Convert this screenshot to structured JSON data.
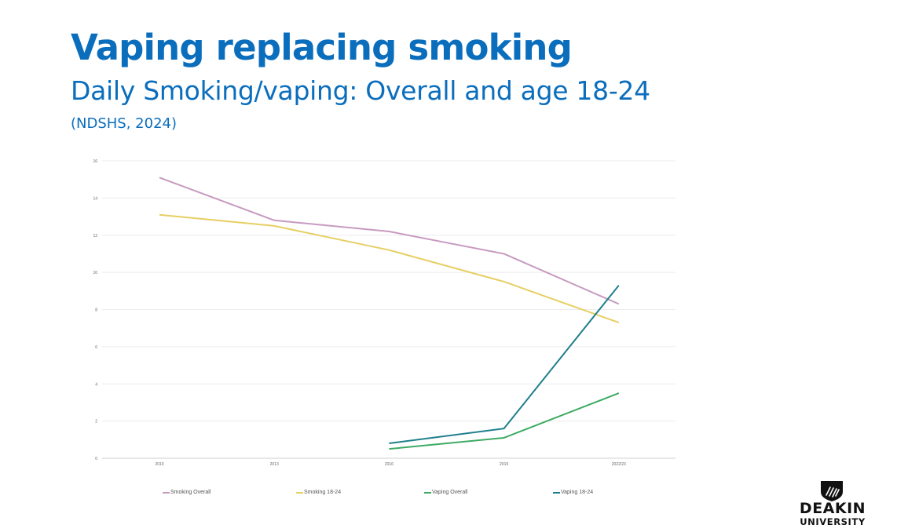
{
  "slide": {
    "title": "Vaping replacing smoking",
    "subtitle": "Daily Smoking/vaping: Overall and age 18-24",
    "source": "(NDSHS, 2024)"
  },
  "logo": {
    "name": "DEAKIN",
    "subname": "UNIVERSITY"
  },
  "chart_data": {
    "type": "line",
    "categories": [
      "2010",
      "2013",
      "2016",
      "2019",
      "2022/23"
    ],
    "ylim": [
      0,
      16
    ],
    "yticks": [
      "0",
      "2",
      "4",
      "6",
      "8",
      "10",
      "12",
      "14",
      "16"
    ],
    "grid": true,
    "legend_position": "bottom",
    "series": [
      {
        "name": "Smoking Overall",
        "color": "#c79ac0",
        "values": [
          15.1,
          12.8,
          12.2,
          11.0,
          8.3
        ]
      },
      {
        "name": "Smoking 18-24",
        "color": "#e6cf63",
        "values": [
          13.1,
          12.5,
          11.2,
          9.5,
          7.3
        ]
      },
      {
        "name": "Vaping Overall",
        "color": "#3daa63",
        "values": [
          null,
          null,
          0.5,
          1.1,
          3.5
        ]
      },
      {
        "name": "Vaping 18-24",
        "color": "#1f7f8c",
        "values": [
          null,
          null,
          0.8,
          1.6,
          9.3
        ]
      }
    ]
  }
}
